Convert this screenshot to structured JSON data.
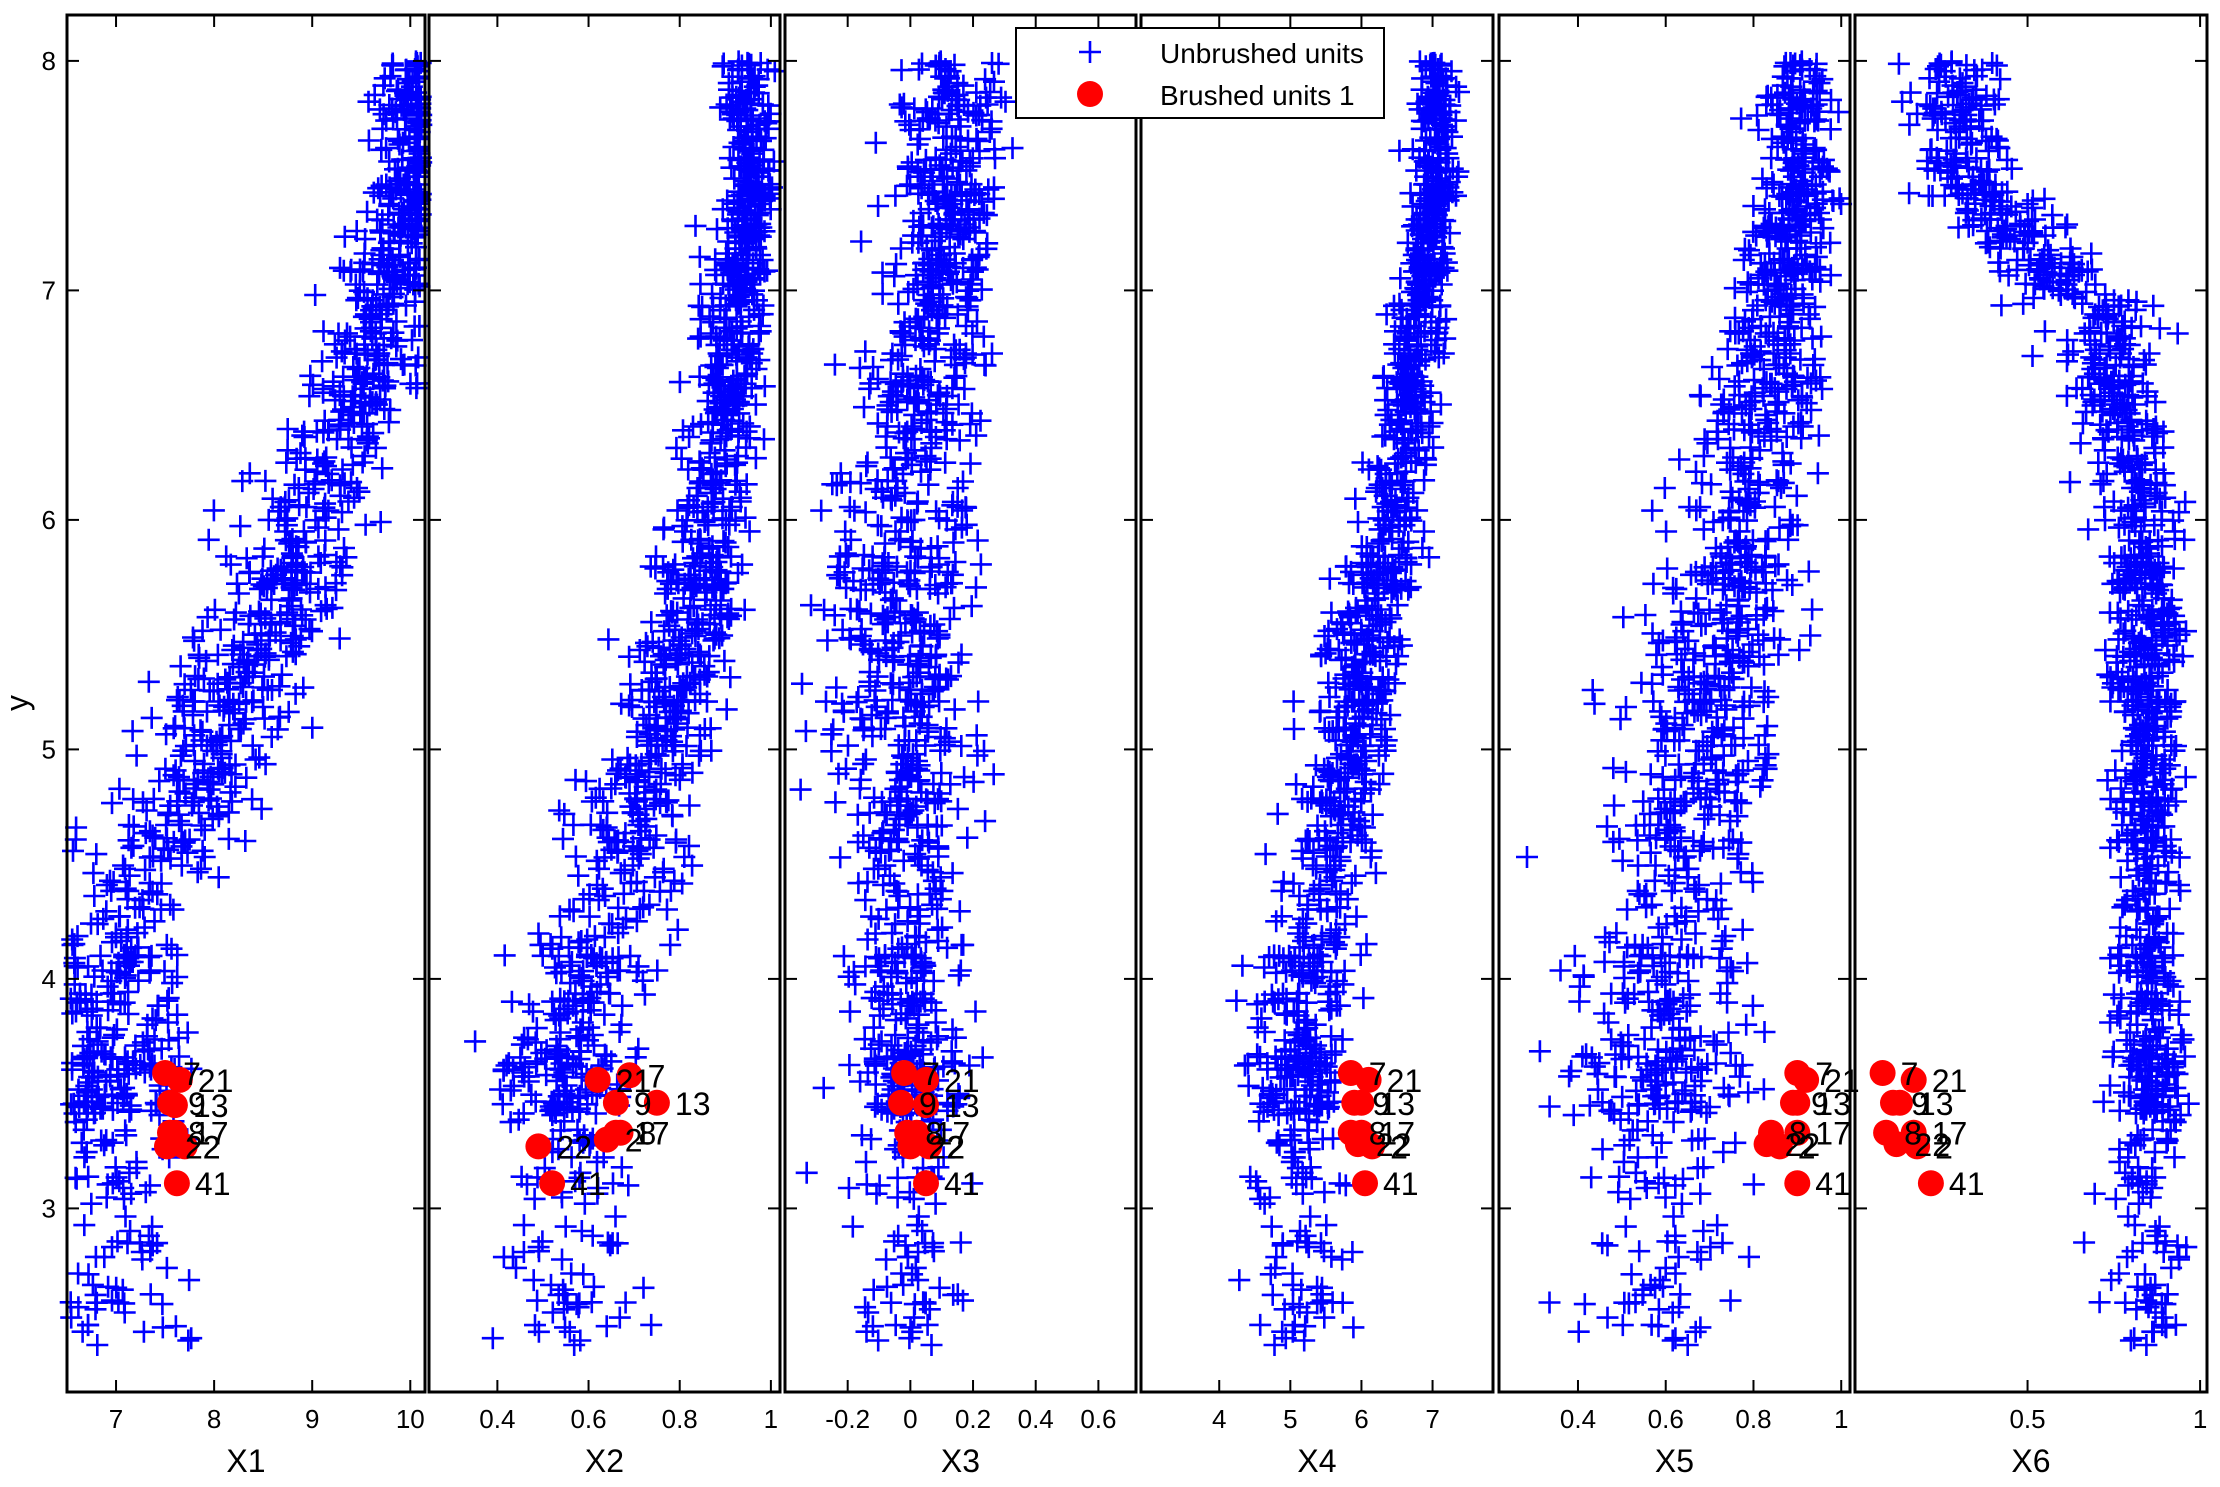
{
  "chart_data": {
    "type": "scatter",
    "figure": "yXplot matrix",
    "ylabel": "y",
    "ylim": [
      2.2,
      8.2
    ],
    "yticks": [
      3,
      4,
      5,
      6,
      7,
      8
    ],
    "legend": {
      "placement": "top",
      "entries": [
        {
          "name": "Unbrushed units",
          "marker": "+",
          "color": "#0000ff"
        },
        {
          "name": "Brushed units 1",
          "marker": "o",
          "color": "#ff0000"
        }
      ]
    },
    "colors": {
      "unbrushed": "#0000ff",
      "brushed": "#ff0000",
      "axis": "#000000"
    },
    "panels": [
      {
        "xlabel": "X1",
        "xlim": [
          6.5,
          10.15
        ],
        "ticks": [
          7,
          8,
          9,
          10
        ],
        "tick_labels": [
          "7",
          "8",
          "9",
          "10"
        ],
        "cloud": {
          "points": [
            [
              7.0,
              4.2
            ],
            [
              7.8,
              4.8
            ],
            [
              8.6,
              5.6
            ],
            [
              9.4,
              6.5
            ],
            [
              10.0,
              7.4
            ]
          ],
          "spread": [
            0.65,
            0.65,
            0.6,
            0.55,
            0.35
          ]
        },
        "brushed": [
          {
            "label": "7",
            "x": 7.5,
            "y": 3.59
          },
          {
            "label": "21",
            "x": 7.65,
            "y": 3.56
          },
          {
            "label": "9",
            "x": 7.55,
            "y": 3.46
          },
          {
            "label": "13",
            "x": 7.6,
            "y": 3.45
          },
          {
            "label": "8",
            "x": 7.55,
            "y": 3.33
          },
          {
            "label": "17",
            "x": 7.6,
            "y": 3.33
          },
          {
            "label": "22",
            "x": 7.52,
            "y": 3.27
          },
          {
            "label": "2",
            "x": 7.7,
            "y": 3.27
          },
          {
            "label": "41",
            "x": 7.62,
            "y": 3.11
          }
        ]
      },
      {
        "xlabel": "X2",
        "xlim": [
          0.25,
          1.02
        ],
        "ticks": [
          0.4,
          0.6,
          0.8,
          1
        ],
        "tick_labels": [
          "0.4",
          "0.6",
          "0.8",
          "1"
        ],
        "cloud": {
          "points": [
            [
              0.55,
              3.7
            ],
            [
              0.7,
              4.6
            ],
            [
              0.82,
              5.5
            ],
            [
              0.9,
              6.5
            ],
            [
              0.95,
              7.4
            ]
          ],
          "spread": [
            0.13,
            0.12,
            0.1,
            0.07,
            0.05
          ]
        },
        "brushed": [
          {
            "label": "7",
            "x": 0.69,
            "y": 3.58
          },
          {
            "label": "21",
            "x": 0.62,
            "y": 3.56
          },
          {
            "label": "9",
            "x": 0.66,
            "y": 3.46
          },
          {
            "label": "13",
            "x": 0.75,
            "y": 3.46
          },
          {
            "label": "8",
            "x": 0.67,
            "y": 3.33
          },
          {
            "label": "17",
            "x": 0.66,
            "y": 3.33
          },
          {
            "label": "22",
            "x": 0.49,
            "y": 3.27
          },
          {
            "label": "2",
            "x": 0.64,
            "y": 3.3
          },
          {
            "label": "41",
            "x": 0.52,
            "y": 3.11
          }
        ]
      },
      {
        "xlabel": "X3",
        "xlim": [
          -0.4,
          0.72
        ],
        "ticks": [
          -0.2,
          0,
          0.2,
          0.4,
          0.6
        ],
        "tick_labels": [
          "-0.2",
          "0",
          "0.2",
          "0.4",
          "0.6"
        ],
        "cloud": {
          "points": [
            [
              0.0,
              3.9
            ],
            [
              -0.02,
              4.8
            ],
            [
              -0.03,
              5.7
            ],
            [
              0.03,
              6.6
            ],
            [
              0.12,
              7.4
            ]
          ],
          "spread": [
            0.16,
            0.2,
            0.2,
            0.18,
            0.16
          ]
        },
        "brushed": [
          {
            "label": "7",
            "x": -0.02,
            "y": 3.59
          },
          {
            "label": "21",
            "x": 0.05,
            "y": 3.56
          },
          {
            "label": "9",
            "x": -0.03,
            "y": 3.46
          },
          {
            "label": "13",
            "x": 0.05,
            "y": 3.45
          },
          {
            "label": "8",
            "x": -0.01,
            "y": 3.33
          },
          {
            "label": "17",
            "x": 0.02,
            "y": 3.33
          },
          {
            "label": "22",
            "x": 0.0,
            "y": 3.27
          },
          {
            "label": "2",
            "x": 0.06,
            "y": 3.27
          },
          {
            "label": "41",
            "x": 0.05,
            "y": 3.11
          }
        ]
      },
      {
        "xlabel": "X4",
        "xlim": [
          2.9,
          7.85
        ],
        "ticks": [
          4,
          5,
          6,
          7
        ],
        "tick_labels": [
          "4",
          "5",
          "6",
          "7"
        ],
        "cloud": {
          "points": [
            [
              5.1,
              3.8
            ],
            [
              5.6,
              4.6
            ],
            [
              6.1,
              5.5
            ],
            [
              6.6,
              6.4
            ],
            [
              7.05,
              7.4
            ]
          ],
          "spread": [
            0.6,
            0.55,
            0.5,
            0.4,
            0.25
          ]
        },
        "brushed": [
          {
            "label": "7",
            "x": 5.85,
            "y": 3.59
          },
          {
            "label": "21",
            "x": 6.1,
            "y": 3.56
          },
          {
            "label": "9",
            "x": 5.9,
            "y": 3.46
          },
          {
            "label": "13",
            "x": 6.0,
            "y": 3.46
          },
          {
            "label": "8",
            "x": 5.85,
            "y": 3.33
          },
          {
            "label": "17",
            "x": 6.0,
            "y": 3.33
          },
          {
            "label": "22",
            "x": 5.95,
            "y": 3.28
          },
          {
            "label": "2",
            "x": 6.15,
            "y": 3.27
          },
          {
            "label": "41",
            "x": 6.05,
            "y": 3.11
          }
        ]
      },
      {
        "xlabel": "X5",
        "xlim": [
          0.22,
          1.02
        ],
        "ticks": [
          0.4,
          0.6,
          0.8,
          1
        ],
        "tick_labels": [
          "0.4",
          "0.6",
          "0.8",
          "1"
        ],
        "cloud": {
          "points": [
            [
              0.58,
              3.9
            ],
            [
              0.65,
              4.7
            ],
            [
              0.74,
              5.6
            ],
            [
              0.82,
              6.5
            ],
            [
              0.9,
              7.4
            ]
          ],
          "spread": [
            0.17,
            0.17,
            0.15,
            0.12,
            0.08
          ]
        },
        "brushed": [
          {
            "label": "7",
            "x": 0.9,
            "y": 3.59
          },
          {
            "label": "21",
            "x": 0.92,
            "y": 3.56
          },
          {
            "label": "9",
            "x": 0.89,
            "y": 3.46
          },
          {
            "label": "13",
            "x": 0.9,
            "y": 3.46
          },
          {
            "label": "8",
            "x": 0.84,
            "y": 3.33
          },
          {
            "label": "17",
            "x": 0.9,
            "y": 3.33
          },
          {
            "label": "22",
            "x": 0.83,
            "y": 3.28
          },
          {
            "label": "2",
            "x": 0.86,
            "y": 3.27
          },
          {
            "label": "41",
            "x": 0.9,
            "y": 3.11
          }
        ]
      },
      {
        "xlabel": "X6",
        "xlim": [
          0.0,
          1.02
        ],
        "ticks": [
          0.5,
          1
        ],
        "tick_labels": [
          "0.5",
          "1"
        ],
        "cloud": {
          "points": [
            [
              0.85,
              4.0
            ],
            [
              0.85,
              5.0
            ],
            [
              0.83,
              6.0
            ],
            [
              0.7,
              6.9
            ],
            [
              0.3,
              7.5
            ]
          ],
          "spread": [
            0.09,
            0.09,
            0.1,
            0.16,
            0.12
          ]
        },
        "brushed": [
          {
            "label": "7",
            "x": 0.08,
            "y": 3.59
          },
          {
            "label": "21",
            "x": 0.17,
            "y": 3.56
          },
          {
            "label": "9",
            "x": 0.11,
            "y": 3.46
          },
          {
            "label": "13",
            "x": 0.13,
            "y": 3.46
          },
          {
            "label": "8",
            "x": 0.09,
            "y": 3.33
          },
          {
            "label": "17",
            "x": 0.17,
            "y": 3.33
          },
          {
            "label": "22",
            "x": 0.12,
            "y": 3.28
          },
          {
            "label": "2",
            "x": 0.18,
            "y": 3.27
          },
          {
            "label": "41",
            "x": 0.22,
            "y": 3.11
          }
        ]
      }
    ]
  }
}
